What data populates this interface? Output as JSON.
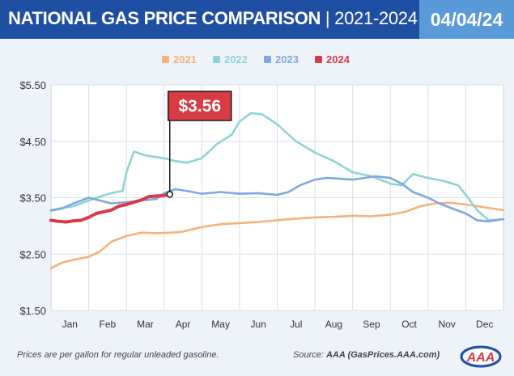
{
  "header": {
    "title": "NATIONAL GAS PRICE COMPARISON",
    "separator": " | ",
    "years": "2021-2024",
    "date": "04/04/24"
  },
  "footer": {
    "note": "Prices are per gallon for regular unleaded gasoline.",
    "source_label": "Source: ",
    "source_value": "AAA (GasPrices.AAA.com)"
  },
  "logo": {
    "text": "AAA"
  },
  "chart_data": {
    "type": "line",
    "categories": [
      "Jan",
      "Feb",
      "Mar",
      "Apr",
      "May",
      "Jun",
      "Jul",
      "Aug",
      "Sep",
      "Oct",
      "Nov",
      "Dec"
    ],
    "ylim": [
      1.5,
      5.5
    ],
    "yticks": [
      "$1.50",
      "$2.50",
      "$3.50",
      "$4.50",
      "$5.50"
    ],
    "grid": true,
    "legend_position": "top-center",
    "series": [
      {
        "name": "2021",
        "color": "#f5b27a",
        "x": [
          0,
          0.3,
          0.6,
          1,
          1.3,
          1.6,
          2,
          2.4,
          2.8,
          3.2,
          3.5,
          4,
          4.5,
          5,
          5.5,
          6,
          6.5,
          7,
          7.5,
          8,
          8.5,
          9,
          9.4,
          9.8,
          10.2,
          10.6,
          11,
          11.5,
          12
        ],
        "y": [
          2.25,
          2.35,
          2.4,
          2.45,
          2.55,
          2.72,
          2.82,
          2.88,
          2.87,
          2.88,
          2.9,
          2.98,
          3.03,
          3.05,
          3.07,
          3.1,
          3.13,
          3.15,
          3.16,
          3.18,
          3.17,
          3.2,
          3.25,
          3.35,
          3.4,
          3.41,
          3.38,
          3.33,
          3.28
        ]
      },
      {
        "name": "2022",
        "color": "#8fd4d4",
        "x": [
          0,
          0.3,
          0.6,
          1,
          1.3,
          1.6,
          1.9,
          2,
          2.2,
          2.5,
          2.8,
          3,
          3.3,
          3.6,
          4,
          4.4,
          4.8,
          5,
          5.3,
          5.6,
          6,
          6.5,
          7,
          7.5,
          8,
          8.5,
          9,
          9.3,
          9.6,
          10,
          10.4,
          10.8,
          11,
          11.3,
          11.6,
          12
        ],
        "y": [
          3.28,
          3.32,
          3.35,
          3.45,
          3.52,
          3.58,
          3.62,
          3.95,
          4.32,
          4.25,
          4.22,
          4.2,
          4.15,
          4.12,
          4.2,
          4.45,
          4.62,
          4.85,
          5.0,
          4.98,
          4.8,
          4.5,
          4.3,
          4.15,
          3.95,
          3.88,
          3.75,
          3.72,
          3.92,
          3.85,
          3.8,
          3.72,
          3.55,
          3.28,
          3.1,
          3.12
        ]
      },
      {
        "name": "2023",
        "color": "#7fa8de",
        "x": [
          0,
          0.3,
          0.6,
          1,
          1.3,
          1.6,
          2,
          2.4,
          2.8,
          3,
          3.3,
          3.6,
          4,
          4.5,
          5,
          5.5,
          6,
          6.3,
          6.6,
          7,
          7.3,
          7.6,
          8,
          8.3,
          8.6,
          9,
          9.3,
          9.6,
          10,
          10.3,
          10.6,
          11,
          11.3,
          11.6,
          12
        ],
        "y": [
          3.27,
          3.31,
          3.4,
          3.5,
          3.45,
          3.4,
          3.42,
          3.45,
          3.48,
          3.58,
          3.65,
          3.62,
          3.57,
          3.6,
          3.57,
          3.58,
          3.55,
          3.6,
          3.72,
          3.82,
          3.85,
          3.84,
          3.82,
          3.85,
          3.88,
          3.85,
          3.75,
          3.6,
          3.5,
          3.4,
          3.32,
          3.22,
          3.1,
          3.08,
          3.12
        ]
      },
      {
        "name": "2024",
        "color": "#d83b44",
        "x": [
          0,
          0.2,
          0.4,
          0.6,
          0.8,
          1,
          1.2,
          1.4,
          1.6,
          1.8,
          2,
          2.2,
          2.4,
          2.6,
          2.8,
          3,
          3.15
        ],
        "y": [
          3.1,
          3.08,
          3.07,
          3.09,
          3.1,
          3.15,
          3.22,
          3.25,
          3.28,
          3.35,
          3.38,
          3.42,
          3.46,
          3.52,
          3.53,
          3.54,
          3.56
        ]
      }
    ],
    "annotation": {
      "label": "$3.56",
      "series": "2024",
      "x": 3.15,
      "y": 3.56
    }
  }
}
